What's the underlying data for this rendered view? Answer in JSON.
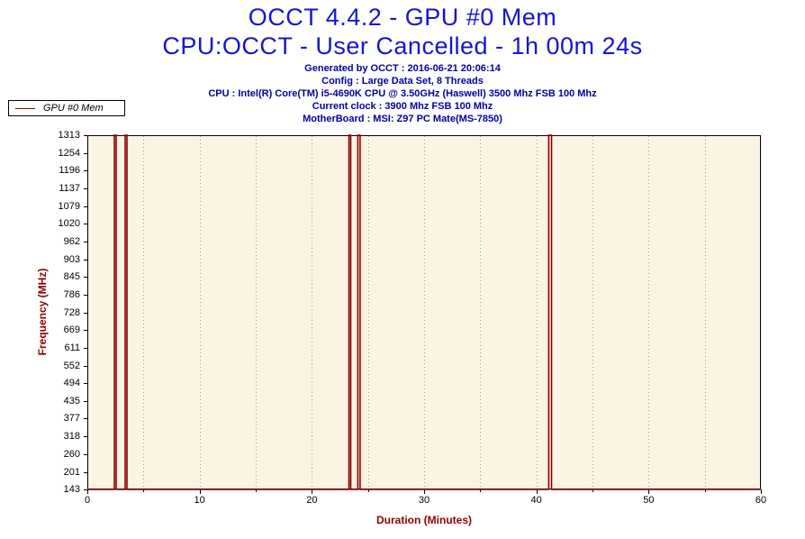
{
  "header": {
    "title_line1": "OCCT 4.4.2 - GPU #0 Mem",
    "title_line2": "CPU:OCCT - User Cancelled - 1h 00m 24s",
    "title_color": "#1515d2",
    "info_color": "#0000a0",
    "info_lines": [
      "Generated by OCCT : 2016-06-21 20:06:14",
      "Config : Large Data Set, 8 Threads",
      "CPU : Intel(R) Core(TM) i5-4690K CPU @ 3.50GHz (Haswell) 3500 Mhz FSB 100 Mhz",
      "Current clock : 3900 Mhz FSB 100 Mhz",
      "MotherBoard : MSI: Z97 PC Mate(MS-7850)"
    ]
  },
  "legend": {
    "label": "GPU #0 Mem",
    "line_color": "#8b0000"
  },
  "chart_data": {
    "type": "line",
    "title": "OCCT 4.4.2 - GPU #0 Mem",
    "subtitle": "CPU:OCCT - User Cancelled - 1h 00m 24s",
    "xlabel": "Duration (Minutes)",
    "ylabel": "Frequency (MHz)",
    "xlim": [
      0,
      60
    ],
    "ylim": [
      143,
      1313
    ],
    "x_major_ticks": [
      0,
      10,
      20,
      30,
      40,
      50,
      60
    ],
    "x_minor_step": 5,
    "y_ticks": [
      143,
      201,
      260,
      318,
      377,
      435,
      494,
      552,
      611,
      669,
      728,
      786,
      845,
      903,
      962,
      1020,
      1079,
      1137,
      1196,
      1254,
      1313
    ],
    "plot_bg": "#fcf4e2",
    "grid_color": "#9a9a9a",
    "axis_color": "#000000",
    "axis_title_color": "#8b0000",
    "legend_position": "top-left",
    "grid": "vertical-dotted-only",
    "series": [
      {
        "name": "GPU #0 Mem",
        "color": "#8b0000",
        "baseline_mhz": 143,
        "peak_mhz": 1313,
        "points": [
          [
            0,
            143
          ],
          [
            2.41,
            143
          ],
          [
            2.41,
            1313
          ],
          [
            2.57,
            1313
          ],
          [
            2.57,
            143
          ],
          [
            3.37,
            143
          ],
          [
            3.37,
            1313
          ],
          [
            3.53,
            1313
          ],
          [
            3.53,
            143
          ],
          [
            23.3,
            143
          ],
          [
            23.3,
            1313
          ],
          [
            23.46,
            1313
          ],
          [
            23.46,
            143
          ],
          [
            24.1,
            143
          ],
          [
            24.1,
            1313
          ],
          [
            24.3,
            1313
          ],
          [
            24.3,
            143
          ],
          [
            41.1,
            143
          ],
          [
            41.1,
            1313
          ],
          [
            41.35,
            1313
          ],
          [
            41.35,
            143
          ],
          [
            60,
            143
          ]
        ]
      }
    ]
  }
}
